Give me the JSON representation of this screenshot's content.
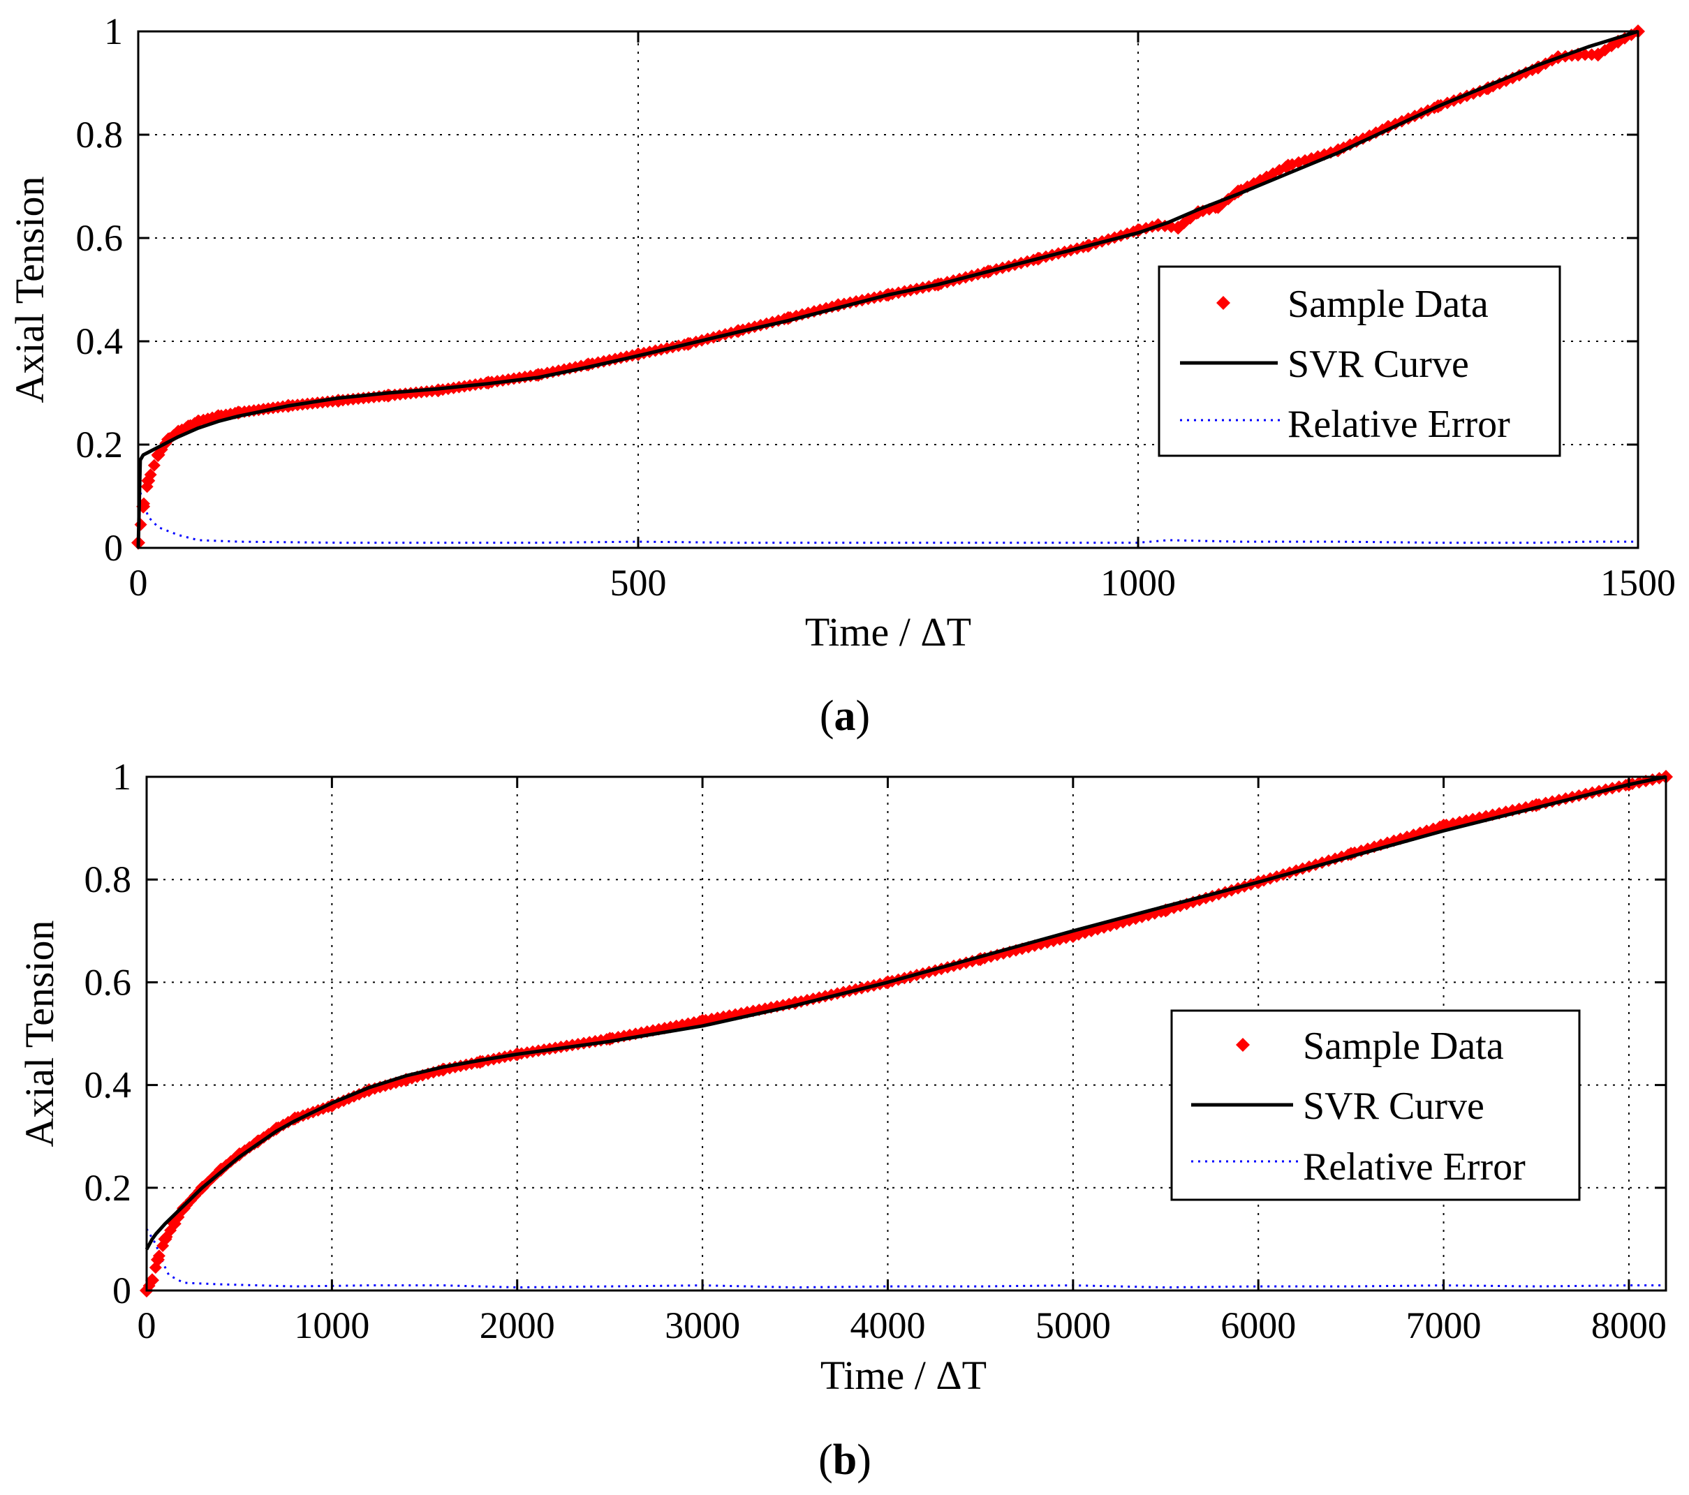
{
  "figure": {
    "panel_a_caption": "(a)",
    "panel_b_caption": "(b)",
    "caption_letters": [
      "a",
      "b"
    ]
  },
  "colors": {
    "sample": "#ff0000",
    "svr": "#000000",
    "error": "#0000ff",
    "grid": "#000000"
  },
  "chart_data": [
    {
      "id": "a",
      "type": "line",
      "title": "",
      "xlabel": "Time / ΔT",
      "ylabel": "Axial Tension",
      "xlim": [
        0,
        1500
      ],
      "ylim": [
        0,
        1
      ],
      "xticks": [
        0,
        500,
        1000,
        1500
      ],
      "xtick_labels": [
        "0",
        "500",
        "1000",
        "1500"
      ],
      "yticks": [
        0,
        0.2,
        0.4,
        0.6,
        0.8,
        1
      ],
      "ytick_labels": [
        "0",
        "0.2",
        "0.4",
        "0.6",
        "0.8",
        "1"
      ],
      "grid": true,
      "legend_position": "center-right",
      "legend": [
        "Sample Data",
        "SVR Curve",
        "Relative Error"
      ],
      "series": [
        {
          "name": "Sample Data",
          "style": "markers",
          "x": [
            0,
            5,
            10,
            20,
            30,
            40,
            50,
            60,
            80,
            100,
            150,
            200,
            250,
            300,
            350,
            400,
            450,
            500,
            550,
            600,
            650,
            700,
            750,
            800,
            850,
            900,
            950,
            1000,
            1020,
            1040,
            1060,
            1080,
            1100,
            1150,
            1200,
            1250,
            1300,
            1350,
            1400,
            1420,
            1440,
            1460,
            1480,
            1500
          ],
          "y": [
            0.01,
            0.08,
            0.13,
            0.18,
            0.21,
            0.225,
            0.235,
            0.245,
            0.255,
            0.262,
            0.275,
            0.285,
            0.295,
            0.305,
            0.32,
            0.335,
            0.355,
            0.375,
            0.395,
            0.42,
            0.445,
            0.47,
            0.49,
            0.51,
            0.535,
            0.56,
            0.585,
            0.615,
            0.625,
            0.62,
            0.65,
            0.66,
            0.69,
            0.74,
            0.77,
            0.815,
            0.855,
            0.89,
            0.93,
            0.95,
            0.955,
            0.955,
            0.98,
            1.0
          ]
        },
        {
          "name": "SVR Curve",
          "style": "solid",
          "x": [
            0,
            2,
            5,
            10,
            20,
            40,
            60,
            80,
            100,
            150,
            200,
            250,
            300,
            350,
            400,
            450,
            500,
            550,
            600,
            650,
            700,
            750,
            800,
            850,
            900,
            950,
            1000,
            1030,
            1060,
            1100,
            1150,
            1200,
            1250,
            1300,
            1350,
            1400,
            1450,
            1500
          ],
          "y": [
            0.0,
            0.17,
            0.18,
            0.185,
            0.195,
            0.215,
            0.232,
            0.245,
            0.255,
            0.275,
            0.29,
            0.3,
            0.308,
            0.318,
            0.33,
            0.35,
            0.372,
            0.395,
            0.418,
            0.44,
            0.465,
            0.49,
            0.51,
            0.535,
            0.56,
            0.585,
            0.61,
            0.63,
            0.655,
            0.685,
            0.725,
            0.765,
            0.81,
            0.855,
            0.895,
            0.935,
            0.97,
            1.0
          ]
        },
        {
          "name": "Relative Error",
          "style": "dotted",
          "x": [
            0,
            5,
            10,
            20,
            40,
            60,
            100,
            200,
            300,
            400,
            500,
            600,
            700,
            800,
            900,
            1000,
            1030,
            1100,
            1200,
            1300,
            1400,
            1450,
            1500
          ],
          "y": [
            0.12,
            0.09,
            0.06,
            0.04,
            0.025,
            0.015,
            0.012,
            0.01,
            0.01,
            0.01,
            0.012,
            0.01,
            0.01,
            0.01,
            0.01,
            0.01,
            0.015,
            0.012,
            0.012,
            0.01,
            0.01,
            0.012,
            0.012
          ]
        }
      ]
    },
    {
      "id": "b",
      "type": "line",
      "title": "",
      "xlabel": "Time / ΔT",
      "ylabel": "Axial Tension",
      "xlim": [
        0,
        8200
      ],
      "ylim": [
        0,
        1
      ],
      "xticks": [
        0,
        1000,
        2000,
        3000,
        4000,
        5000,
        6000,
        7000,
        8000
      ],
      "xtick_labels": [
        "0",
        "1000",
        "2000",
        "3000",
        "4000",
        "5000",
        "6000",
        "7000",
        "8000"
      ],
      "yticks": [
        0,
        0.2,
        0.4,
        0.6,
        0.8,
        1
      ],
      "ytick_labels": [
        "0",
        "0.2",
        "0.4",
        "0.6",
        "0.8",
        "1"
      ],
      "grid": true,
      "legend_position": "center-right",
      "legend": [
        "Sample Data",
        "SVR Curve",
        "Relative Error"
      ],
      "series": [
        {
          "name": "Sample Data",
          "style": "markers",
          "x": [
            0,
            30,
            60,
            100,
            150,
            200,
            300,
            400,
            500,
            600,
            700,
            800,
            1000,
            1200,
            1400,
            1600,
            1800,
            2000,
            2500,
            3000,
            3500,
            4000,
            4500,
            5000,
            5500,
            6000,
            6500,
            7000,
            7500,
            8000,
            8200
          ],
          "y": [
            0.0,
            0.02,
            0.06,
            0.1,
            0.13,
            0.16,
            0.2,
            0.235,
            0.265,
            0.29,
            0.315,
            0.335,
            0.36,
            0.39,
            0.41,
            0.43,
            0.445,
            0.46,
            0.49,
            0.525,
            0.56,
            0.6,
            0.645,
            0.69,
            0.74,
            0.795,
            0.85,
            0.905,
            0.945,
            0.985,
            1.0
          ]
        },
        {
          "name": "SVR Curve",
          "style": "solid",
          "x": [
            0,
            30,
            50,
            100,
            200,
            300,
            400,
            500,
            600,
            700,
            800,
            1000,
            1200,
            1400,
            1600,
            1800,
            2000,
            2500,
            3000,
            3500,
            4000,
            4500,
            5000,
            5500,
            6000,
            6500,
            7000,
            7500,
            8000,
            8200
          ],
          "y": [
            0.08,
            0.1,
            0.11,
            0.13,
            0.165,
            0.2,
            0.23,
            0.26,
            0.285,
            0.31,
            0.33,
            0.365,
            0.395,
            0.418,
            0.435,
            0.448,
            0.46,
            0.485,
            0.515,
            0.555,
            0.6,
            0.65,
            0.7,
            0.748,
            0.795,
            0.845,
            0.895,
            0.94,
            0.985,
            1.0
          ]
        },
        {
          "name": "Relative Error",
          "style": "dotted",
          "x": [
            0,
            50,
            80,
            120,
            200,
            400,
            800,
            1200,
            1600,
            2000,
            2500,
            3000,
            3500,
            4000,
            4500,
            5000,
            5500,
            6000,
            6500,
            7000,
            7500,
            8000,
            8200
          ],
          "y": [
            0.12,
            0.09,
            0.06,
            0.03,
            0.015,
            0.012,
            0.008,
            0.01,
            0.01,
            0.006,
            0.008,
            0.01,
            0.006,
            0.008,
            0.008,
            0.01,
            0.006,
            0.008,
            0.008,
            0.01,
            0.008,
            0.01,
            0.01
          ]
        }
      ]
    }
  ]
}
